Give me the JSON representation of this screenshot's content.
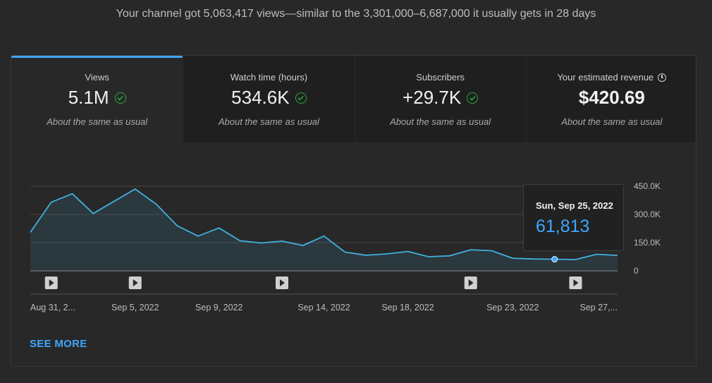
{
  "headline": "Your channel got 5,063,417 views—similar to the 3,301,000–6,687,000 it usually gets in 28 days",
  "tabs": [
    {
      "label": "Views",
      "value": "5.1M",
      "note": "About the same as usual",
      "icon": "check-circle-icon"
    },
    {
      "label": "Watch time (hours)",
      "value": "534.6K",
      "note": "About the same as usual",
      "icon": "check-circle-icon"
    },
    {
      "label": "Subscribers",
      "value": "+29.7K",
      "note": "About the same as usual",
      "icon": "check-circle-icon"
    },
    {
      "label": "Your estimated revenue",
      "value": "$420.69",
      "note": "About the same as usual",
      "icon": "clock-icon"
    }
  ],
  "colors": {
    "accent": "#3ea6ff",
    "line": "#41b0e0",
    "positive": "#2ba640",
    "background": "#282828"
  },
  "tooltip": {
    "date": "Sun, Sep 25, 2022",
    "value": "61,813"
  },
  "see_more": "SEE MORE",
  "chart_data": {
    "type": "area",
    "x": [
      "Aug 31",
      "Sep 1",
      "Sep 2",
      "Sep 3",
      "Sep 4",
      "Sep 5",
      "Sep 6",
      "Sep 7",
      "Sep 8",
      "Sep 9",
      "Sep 10",
      "Sep 11",
      "Sep 12",
      "Sep 13",
      "Sep 14",
      "Sep 15",
      "Sep 16",
      "Sep 17",
      "Sep 18",
      "Sep 19",
      "Sep 20",
      "Sep 21",
      "Sep 22",
      "Sep 23",
      "Sep 24",
      "Sep 25",
      "Sep 26",
      "Sep 27",
      "Sep 28"
    ],
    "values": [
      205000,
      365000,
      410000,
      305000,
      370000,
      435000,
      355000,
      240000,
      185000,
      228000,
      160000,
      148000,
      158000,
      135000,
      185000,
      100000,
      83000,
      90000,
      103000,
      75000,
      80000,
      112000,
      107000,
      67000,
      63000,
      61813,
      60000,
      88000,
      82000
    ],
    "x_tick_labels": [
      "Aug 31, 2...",
      "Sep 5, 2022",
      "Sep 9, 2022",
      "Sep 14, 2022",
      "Sep 18, 2022",
      "Sep 23, 2022",
      "Sep 27,..."
    ],
    "x_tick_index": [
      0,
      5,
      9,
      14,
      18,
      23,
      27
    ],
    "y_ticks": [
      0,
      150000,
      300000,
      450000
    ],
    "y_tick_labels": [
      "0",
      "150.0K",
      "300.0K",
      "450.0K"
    ],
    "ylim": [
      0,
      450000
    ],
    "highlight_index": 25,
    "video_marker_index": [
      1,
      5,
      12,
      21,
      26
    ],
    "grid": true
  }
}
